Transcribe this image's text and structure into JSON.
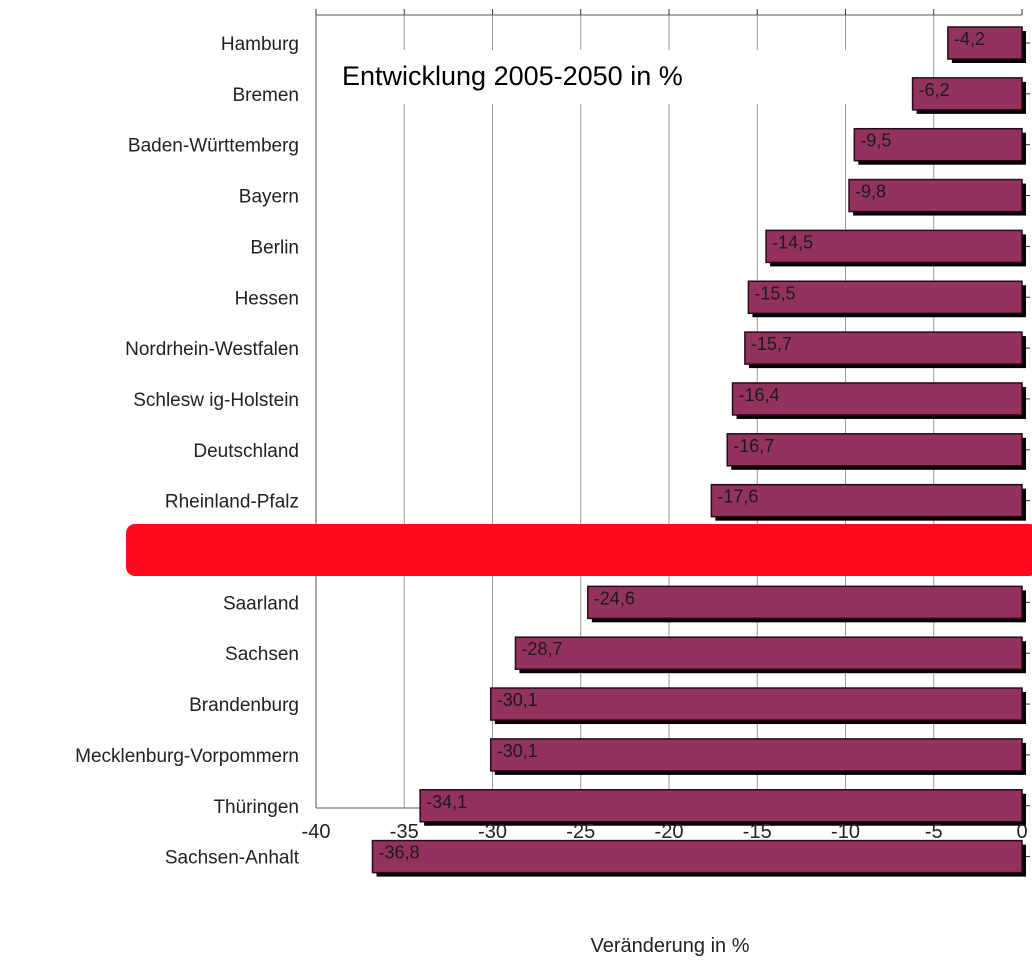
{
  "chart_data": {
    "type": "bar",
    "orientation": "horizontal",
    "title": "Entwicklung 2005-2050 in %",
    "xlabel": "Veränderung in %",
    "ylabel": "",
    "xlim": [
      -40,
      0
    ],
    "x_ticks": [
      -40,
      -35,
      -30,
      -25,
      -20,
      -15,
      -10,
      -5,
      0
    ],
    "grid": "vertical",
    "categories": [
      "Hamburg",
      "Bremen",
      "Baden-Württemberg",
      "Bayern",
      "Berlin",
      "Hessen",
      "Nordrhein-Westfalen",
      "Schlesw ig-Holstein",
      "Deutschland",
      "Rheinland-Pfalz",
      "",
      "Saarland",
      "Sachsen",
      "Brandenburg",
      "Mecklenburg-Vorpommern",
      "Thüringen",
      "Sachsen-Anhalt"
    ],
    "values": [
      -4.2,
      -6.2,
      -9.5,
      -9.8,
      -14.5,
      -15.5,
      -15.7,
      -16.4,
      -16.7,
      -17.6,
      null,
      -24.6,
      -28.7,
      -30.1,
      -30.1,
      -34.1,
      -36.8
    ],
    "data_labels": [
      "-4,2",
      "-6,2",
      "-9,5",
      "-9,8",
      "-14,5",
      "-15,5",
      "-15,7",
      "-16,4",
      "-16,7",
      "-17,6",
      "",
      "-24,6",
      "-28,7",
      "-30,1",
      "-30,1",
      "-34,1",
      "-36,8"
    ],
    "bar_color": "#93325f",
    "shadow_color": "#000000",
    "grid_color": "#999999",
    "overlay_color": "#ff0a1e"
  }
}
